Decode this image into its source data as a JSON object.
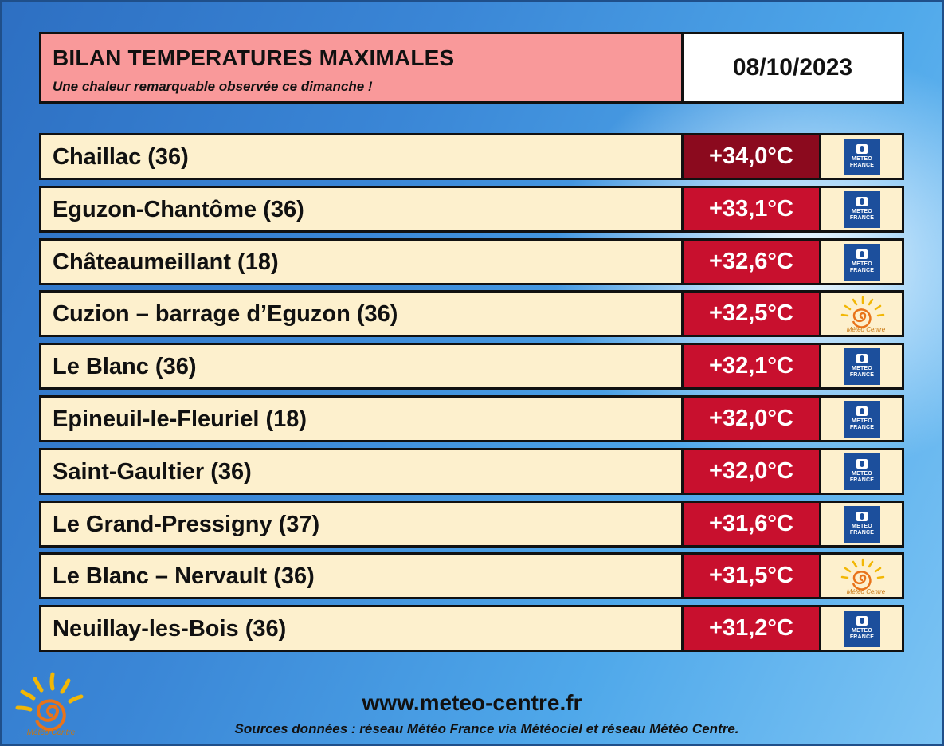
{
  "header": {
    "title": "BILAN TEMPERATURES MAXIMALES",
    "subtitle": "Une chaleur remarquable observée ce dimanche !",
    "date": "08/10/2023"
  },
  "colors": {
    "header_bg": "#f9999a",
    "row_bg": "#fdf0cd",
    "temp_top": "#8b0a1e",
    "temp_red": "#c8102e",
    "meteo_france_blue": "#1c4f9c"
  },
  "rows": [
    {
      "station": "Chaillac (36)",
      "temp": "+34,0°C",
      "source": "meteo-france-logo"
    },
    {
      "station": "Eguzon-Chantôme (36)",
      "temp": "+33,1°C",
      "source": "meteo-france-logo"
    },
    {
      "station": "Châteaumeillant (18)",
      "temp": "+32,6°C",
      "source": "meteo-france-logo"
    },
    {
      "station": "Cuzion – barrage d’Eguzon (36)",
      "temp": "+32,5°C",
      "source": "meteo-centre-logo"
    },
    {
      "station": "Le Blanc (36)",
      "temp": "+32,1°C",
      "source": "meteo-france-logo"
    },
    {
      "station": "Epineuil-le-Fleuriel (18)",
      "temp": "+32,0°C",
      "source": "meteo-france-logo"
    },
    {
      "station": "Saint-Gaultier (36)",
      "temp": "+32,0°C",
      "source": "meteo-france-logo"
    },
    {
      "station": "Le Grand-Pressigny (37)",
      "temp": "+31,6°C",
      "source": "meteo-france-logo"
    },
    {
      "station": "Le Blanc – Nervault (36)",
      "temp": "+31,5°C",
      "source": "meteo-centre-logo"
    },
    {
      "station": "Neuillay-les-Bois (36)",
      "temp": "+31,2°C",
      "source": "meteo-france-logo"
    }
  ],
  "logo_text": {
    "meteo_france": [
      "METEO",
      "FRANCE"
    ],
    "meteo_centre": "Météo Centre"
  },
  "footer": {
    "url": "www.meteo-centre.fr",
    "sources": "Sources données : réseau Météo France via Météociel et réseau Météo Centre."
  }
}
